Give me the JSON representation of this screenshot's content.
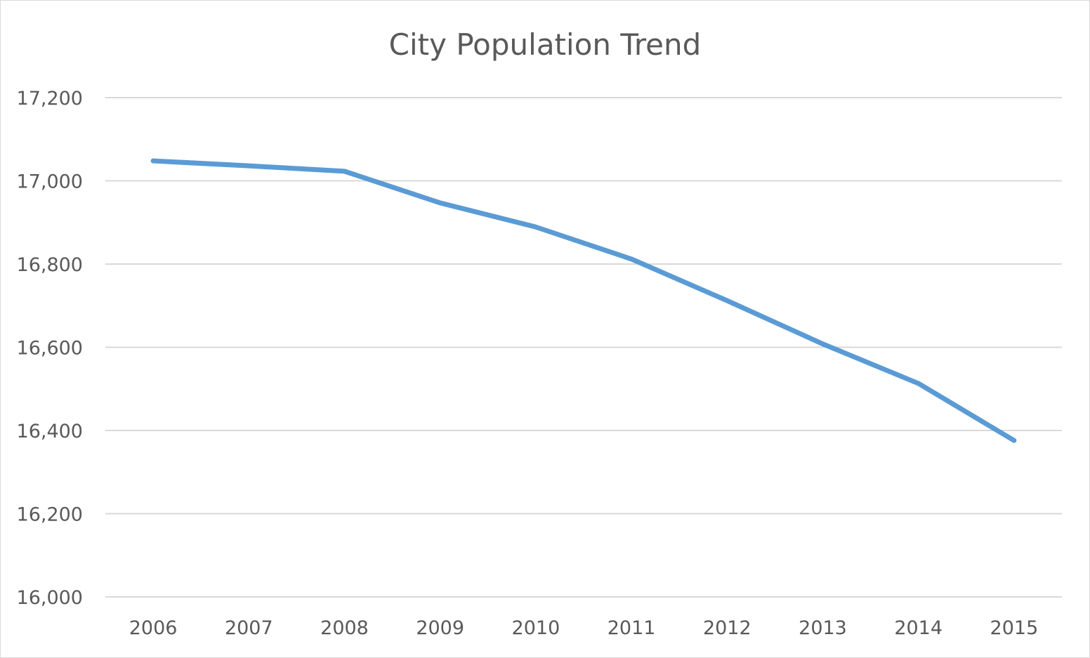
{
  "chart_data": {
    "type": "line",
    "title": "City Population Trend",
    "xlabel": "",
    "ylabel": "",
    "categories": [
      "2006",
      "2007",
      "2008",
      "2009",
      "2010",
      "2011",
      "2012",
      "2013",
      "2014",
      "2015"
    ],
    "series": [
      {
        "values": [
          17048,
          17036,
          17023,
          16947,
          16889,
          16812,
          16712,
          16608,
          16513,
          16376
        ],
        "color": "#5b9bd5"
      }
    ],
    "ylim": [
      16000,
      17200
    ],
    "yticks": [
      16000,
      16200,
      16400,
      16600,
      16800,
      17000,
      17200
    ],
    "ytick_labels": [
      "16,000",
      "16,200",
      "16,400",
      "16,600",
      "16,800",
      "17,000",
      "17,200"
    ],
    "grid": "horizontal",
    "gridline_color": "#d9d9d9",
    "legend": "none"
  }
}
